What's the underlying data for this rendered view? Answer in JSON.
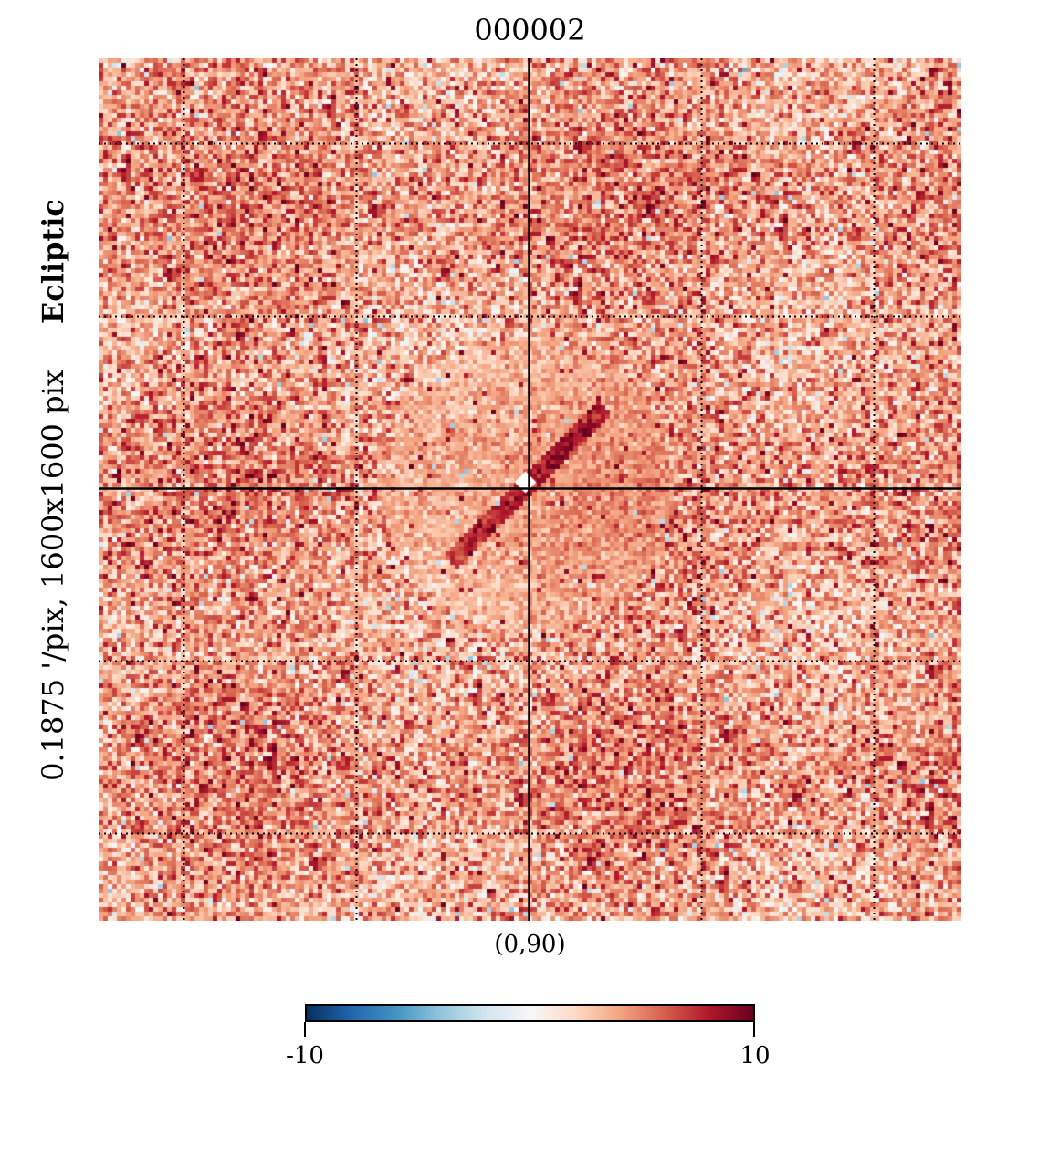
{
  "chart_data": {
    "type": "heatmap",
    "title": "000002",
    "projection_label": "Ecliptic",
    "resolution_label": "0.1875 '/pix,   1600x1600 pix",
    "center_label": "(0,90)",
    "colormap": "RdBu_r",
    "colorbar": {
      "min": -10,
      "max": 10,
      "min_label": "-10",
      "max_label": "10",
      "colors": [
        "#053061",
        "#2166ac",
        "#4393c3",
        "#92c5de",
        "#d1e5f0",
        "#f7f7f7",
        "#fddbc7",
        "#f4a582",
        "#d6604d",
        "#b2182b",
        "#67001f"
      ]
    },
    "graticule": "dotted",
    "grid": true,
    "axes_crosshair": true
  }
}
